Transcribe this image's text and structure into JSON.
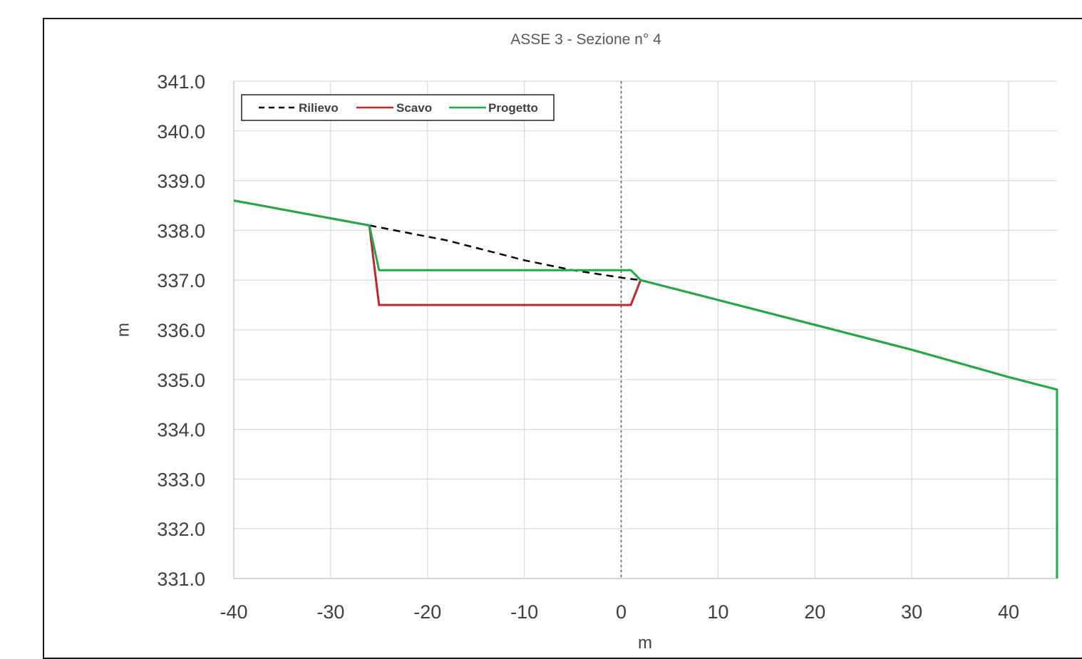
{
  "chart_data": {
    "type": "line",
    "title": "ASSE 3 - Sezione n° 4",
    "xlabel": "m",
    "ylabel": "m",
    "xlim": [
      -40,
      45
    ],
    "ylim": [
      331.0,
      341.0
    ],
    "x_ticks": [
      -40,
      -30,
      -20,
      -10,
      0,
      10,
      20,
      30,
      40
    ],
    "x_tick_labels": [
      "-40",
      "-30",
      "-20",
      "-10",
      "0",
      "10",
      "20",
      "30",
      "40"
    ],
    "y_ticks": [
      331,
      332,
      333,
      334,
      335,
      336,
      337,
      338,
      339,
      340,
      341
    ],
    "y_tick_labels": [
      "331.0",
      "332.0",
      "333.0",
      "334.0",
      "335.0",
      "336.0",
      "337.0",
      "338.0",
      "339.0",
      "340.0",
      "341.0"
    ],
    "grid": true,
    "legend_position": "top-left",
    "reference_line": {
      "x": 0,
      "style": "dotted",
      "color": "#555555"
    },
    "series": [
      {
        "name": "Rilievo",
        "color": "#000000",
        "style": "dashed",
        "points": [
          [
            -26.0,
            338.1
          ],
          [
            -22.0,
            337.95
          ],
          [
            -18.0,
            337.8
          ],
          [
            -14.0,
            337.6
          ],
          [
            -10.0,
            337.4
          ],
          [
            -5.0,
            337.2
          ],
          [
            0.0,
            337.05
          ],
          [
            2.0,
            337.0
          ]
        ]
      },
      {
        "name": "Scavo",
        "color": "#c0272d",
        "style": "solid",
        "points": [
          [
            -40.0,
            338.6
          ],
          [
            -26.0,
            338.1
          ],
          [
            -25.0,
            336.5
          ],
          [
            1.0,
            336.5
          ],
          [
            2.0,
            337.0
          ],
          [
            10.0,
            336.6
          ],
          [
            20.0,
            336.1
          ],
          [
            30.0,
            335.6
          ],
          [
            40.0,
            335.05
          ],
          [
            45.0,
            334.8
          ],
          [
            45.0,
            331.0
          ]
        ]
      },
      {
        "name": "Progetto",
        "color": "#21a94a",
        "style": "solid",
        "points": [
          [
            -40.0,
            338.6
          ],
          [
            -26.0,
            338.1
          ],
          [
            -25.0,
            337.2
          ],
          [
            1.0,
            337.2
          ],
          [
            2.0,
            337.0
          ],
          [
            10.0,
            336.6
          ],
          [
            20.0,
            336.1
          ],
          [
            30.0,
            335.6
          ],
          [
            40.0,
            335.05
          ],
          [
            45.0,
            334.8
          ],
          [
            45.0,
            331.0
          ]
        ]
      }
    ]
  }
}
